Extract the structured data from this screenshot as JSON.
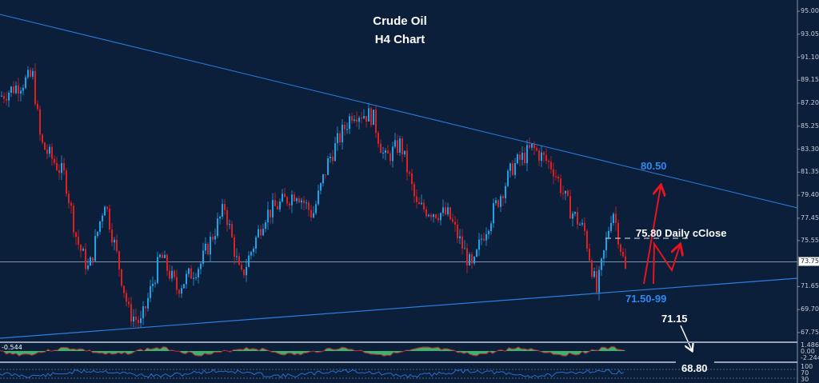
{
  "title": "Crude Oil",
  "subtitle": "H4  Chart",
  "chart_data": {
    "type": "line",
    "title": "Crude Oil",
    "subtitle": "H4  Chart",
    "price_axis": {
      "ticks": [
        "95.00",
        "93.05",
        "91.10",
        "89.15",
        "87.20",
        "85.25",
        "83.30",
        "81.35",
        "79.40",
        "77.45",
        "75.55",
        "73.75",
        "71.65",
        "69.70",
        "67.75"
      ],
      "range": [
        67.0,
        95.5
      ]
    },
    "current_price": "73.75",
    "approx_close_path": [
      87.8,
      89.5,
      83.8,
      81.0,
      75.6,
      73.0,
      79.0,
      74.3,
      69.5,
      68.5,
      74.3,
      71.5,
      73.6,
      78.4,
      72.3,
      77.7,
      79.7,
      77.7,
      82.4,
      86.5,
      86.1,
      82.4,
      83.8,
      78.4,
      77.7,
      73.0,
      75.6,
      81.8,
      83.4,
      81.8,
      78.4,
      76.3,
      71.2,
      78.4,
      72.6
    ],
    "trendlines": [
      {
        "name": "upper",
        "color": "#2a7fe0"
      },
      {
        "name": "lower",
        "color": "#2a7fe0"
      }
    ],
    "colors": {
      "background": "#0b1e3a",
      "up": "#1fa3e8",
      "down": "#e02020",
      "trend": "#2a7fe0",
      "annotation_arrow": "#e8141e"
    },
    "annotations": {
      "resistance": "80.50",
      "daily_close": "75.80 Daily cClose",
      "support_zone": "71.50-99",
      "target1": "71.15",
      "target2": "68.80"
    },
    "indicator1": {
      "value_label": "-0.544",
      "ticks": [
        "1.486",
        "0.00",
        "-2.244"
      ],
      "colors": {
        "fill": "#3cb46e",
        "line": "#c0202a"
      }
    },
    "indicator2": {
      "ticks": [
        "100",
        "70",
        "30"
      ],
      "color": "#2a6fd0"
    },
    "grid": false
  }
}
